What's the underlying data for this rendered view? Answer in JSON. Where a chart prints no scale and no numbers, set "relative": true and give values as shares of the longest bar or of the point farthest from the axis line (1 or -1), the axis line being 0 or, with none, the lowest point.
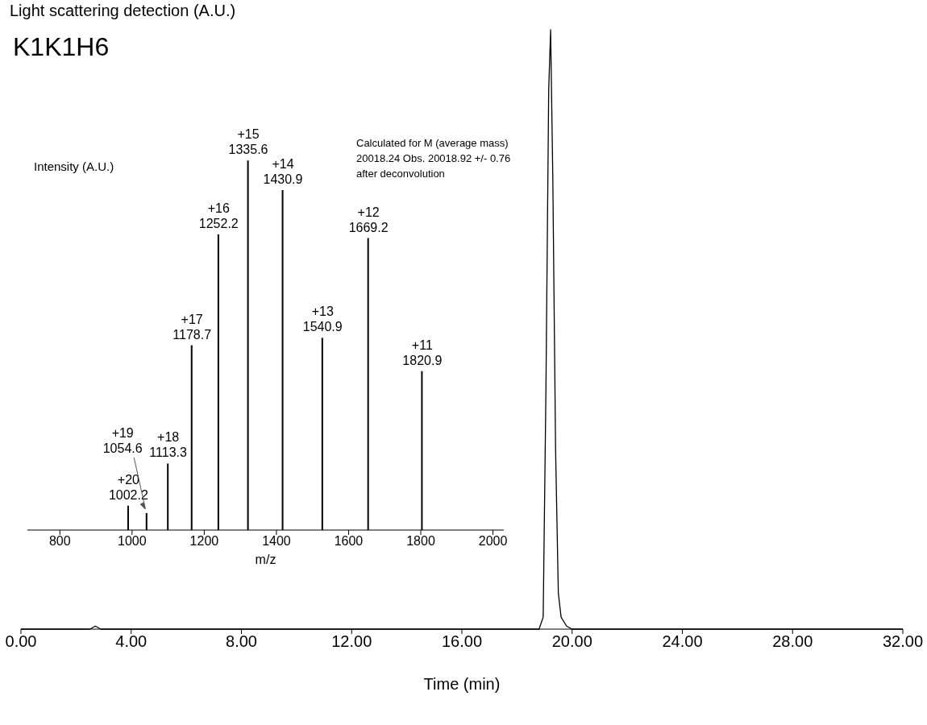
{
  "chart_data": [
    {
      "type": "line",
      "title": "K1K1H6",
      "ylabel": "Light scattering detection (A.U.)",
      "xlabel": "Time (min)",
      "relative": true,
      "color": "#000000",
      "marker": "none",
      "x": [
        0,
        2.5,
        2.7,
        2.9,
        18.8,
        18.95,
        19.05,
        19.15,
        19.22,
        19.3,
        19.4,
        19.5,
        19.6,
        19.8,
        20,
        32
      ],
      "values": [
        0,
        0,
        0.005,
        0,
        0,
        0.02,
        0.4,
        0.9,
        1,
        0.75,
        0.3,
        0.06,
        0.02,
        0.005,
        0,
        0
      ],
      "xlim": [
        0,
        32
      ],
      "xticks": [
        {
          "value": 0,
          "label": "0.00"
        },
        {
          "value": 4,
          "label": "4.00"
        },
        {
          "value": 8,
          "label": "8.00"
        },
        {
          "value": 12,
          "label": "12.00"
        },
        {
          "value": 16,
          "label": "16.00"
        },
        {
          "value": 20,
          "label": "20.00"
        },
        {
          "value": 24,
          "label": "24.00"
        },
        {
          "value": 28,
          "label": "28.00"
        },
        {
          "value": 32,
          "label": "32.00"
        }
      ]
    },
    {
      "type": "bar",
      "ylabel": "Intensity (A.U.)",
      "xlabel": "m/z",
      "relative": true,
      "color": "#000000",
      "x": [
        990,
        1041,
        1100,
        1166,
        1240,
        1322,
        1418,
        1528,
        1655,
        1804
      ],
      "values": [
        0.066,
        0.046,
        0.18,
        0.5,
        0.8,
        1,
        0.92,
        0.52,
        0.79,
        0.43
      ],
      "xlim": [
        710,
        2030
      ],
      "xticks": [
        800,
        1000,
        1200,
        1400,
        1600,
        1800,
        2000
      ],
      "annotations": [
        {
          "text": "+20\n1002.2",
          "x": 990,
          "y": 0.066
        },
        {
          "text": "+19\n1054.6",
          "x": 1041,
          "y": 0.046
        },
        {
          "text": "+18\n1113.3",
          "x": 1100,
          "y": 0.18
        },
        {
          "text": "+17\n1178.7",
          "x": 1166,
          "y": 0.5
        },
        {
          "text": "+16\n1252.2",
          "x": 1240,
          "y": 0.8
        },
        {
          "text": "+15\n1335.6",
          "x": 1322,
          "y": 1
        },
        {
          "text": "+14\n1430.9",
          "x": 1418,
          "y": 0.92
        },
        {
          "text": "+13\n1540.9",
          "x": 1528,
          "y": 0.52
        },
        {
          "text": "+12\n1669.2",
          "x": 1655,
          "y": 0.79
        },
        {
          "text": "+11\n1820.9",
          "x": 1804,
          "y": 0.43
        },
        "Calculated for M (average mass) 20018.24 Obs. 20018.92 +/- 0.76 after deconvolution"
      ]
    }
  ]
}
